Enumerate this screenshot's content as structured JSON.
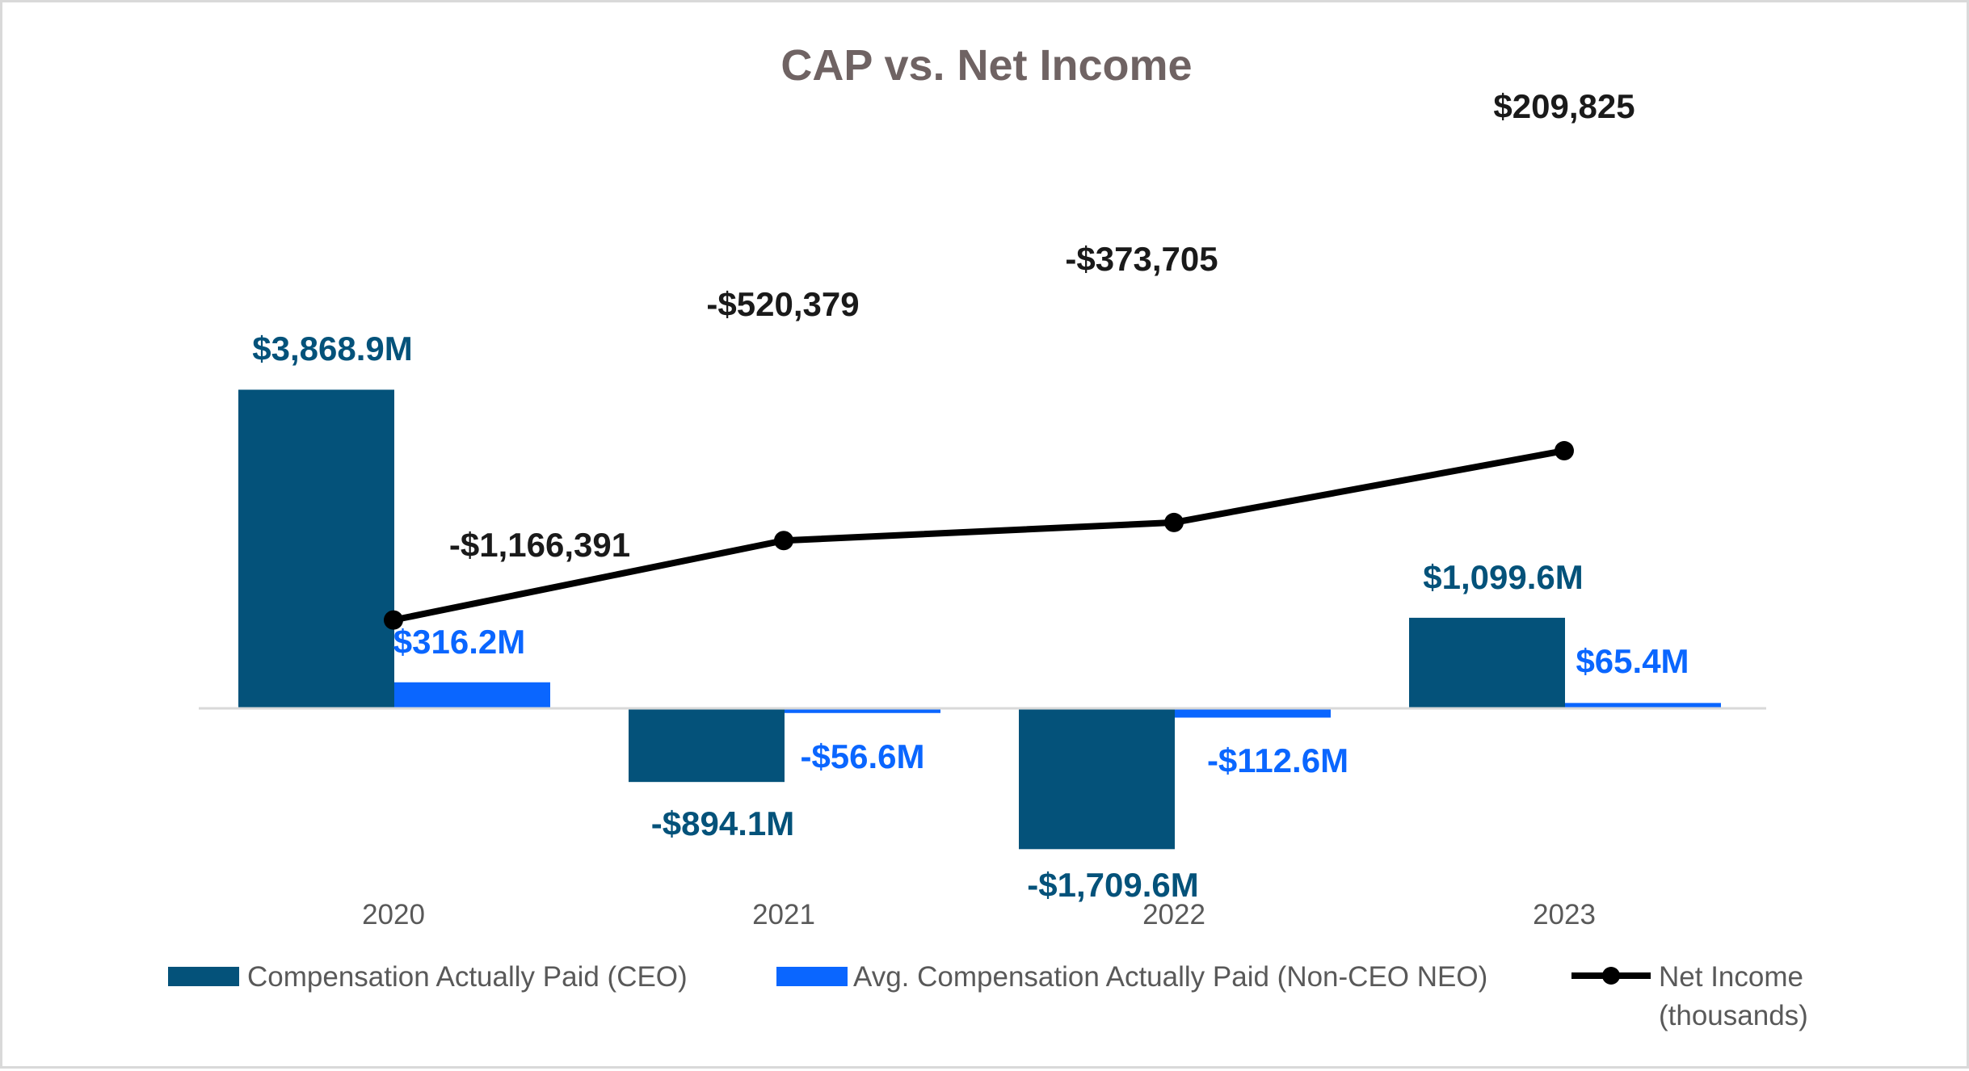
{
  "chart_data": {
    "type": "bar",
    "title": "CAP vs. Net Income",
    "categories": [
      "2020",
      "2021",
      "2022",
      "2023"
    ],
    "series": [
      {
        "name": "Compensation Actually Paid (CEO)",
        "kind": "bar",
        "axis": "primary",
        "color": "#04527a",
        "values": [
          3868.9,
          -894.1,
          -1709.6,
          1099.6
        ],
        "data_labels": [
          "$3,868.9M",
          "-$894.1M",
          "-$1,709.6M",
          "$1,099.6M"
        ]
      },
      {
        "name": "Avg. Compensation Actually Paid (Non-CEO NEO)",
        "kind": "bar",
        "axis": "primary",
        "color": "#0a66ff",
        "values": [
          316.2,
          -56.6,
          -112.6,
          65.4
        ],
        "data_labels": [
          "$316.2M",
          "-$56.6M",
          "-$112.6M",
          "$65.4M"
        ]
      },
      {
        "name": "Net Income",
        "name_line2": "(thousands)",
        "kind": "line",
        "axis": "secondary",
        "color": "#000000",
        "values": [
          -1166391,
          -520379,
          -373705,
          209825
        ],
        "data_labels": [
          "-$1,166,391",
          "-$520,379",
          "-$373,705",
          "$209,825"
        ]
      }
    ],
    "primary_axis_range": [
      -2000,
      5000
    ],
    "secondary_axis_range": [
      -3000000,
      500000
    ],
    "gridlines": false,
    "legend_position": "bottom"
  }
}
